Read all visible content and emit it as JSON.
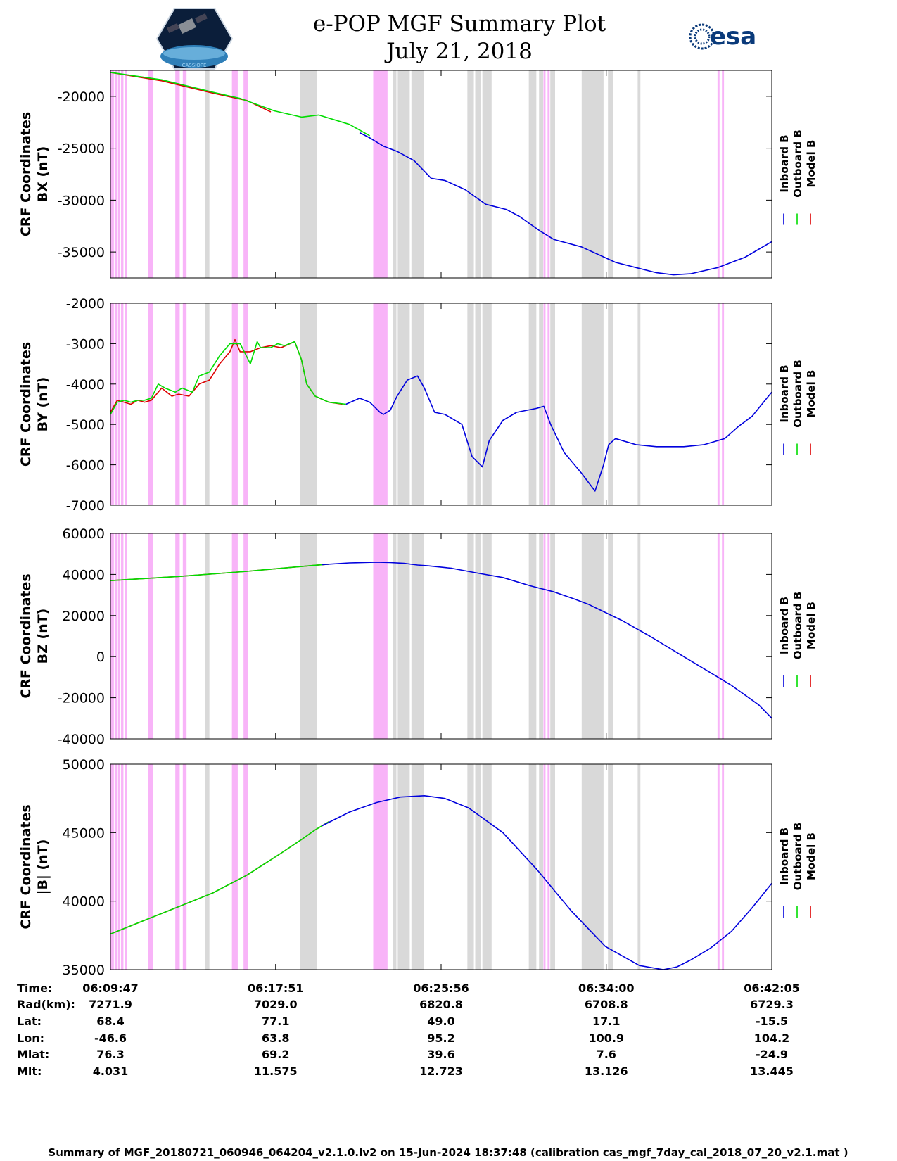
{
  "header": {
    "title_line1": "e-POP MGF Summary Plot",
    "title_line2": "July 21, 2018",
    "left_logo_caption": "CASSIOPE",
    "right_logo_text": "esa"
  },
  "colors": {
    "inboard": "#0000dd",
    "outboard": "#00dd00",
    "model": "#dd0000",
    "pink_band": "#f8b4f8",
    "gray_band": "#d9d9d9"
  },
  "legend": [
    "Inboard B",
    "Outboard B",
    "Model B"
  ],
  "time_axis": {
    "start_sec": 0,
    "end_sec": 1938,
    "tick_seconds": [
      0,
      484,
      969,
      1453,
      1938
    ]
  },
  "bands": {
    "pink": [
      [
        0,
        10
      ],
      [
        12,
        20
      ],
      [
        22,
        29
      ],
      [
        31,
        38
      ],
      [
        42,
        49
      ],
      [
        110,
        125
      ],
      [
        190,
        203
      ],
      [
        212,
        223
      ],
      [
        356,
        373
      ],
      [
        390,
        404
      ],
      [
        770,
        812
      ],
      [
        1269,
        1275
      ],
      [
        1281,
        1287
      ],
      [
        1779,
        1785
      ],
      [
        1792,
        1798
      ]
    ],
    "gray": [
      [
        277,
        290
      ],
      [
        556,
        605
      ],
      [
        828,
        838
      ],
      [
        842,
        877
      ],
      [
        882,
        918
      ],
      [
        1046,
        1065
      ],
      [
        1069,
        1086
      ],
      [
        1090,
        1117
      ],
      [
        1226,
        1248
      ],
      [
        1256,
        1268
      ],
      [
        1289,
        1303
      ],
      [
        1381,
        1445
      ],
      [
        1458,
        1473
      ],
      [
        1545,
        1553
      ]
    ]
  },
  "chart_data": [
    {
      "type": "line",
      "title": "CRF Coordinates BX",
      "ylabel_line1": "CRF Coordinates",
      "ylabel_line2": "BX (nT)",
      "ylim": [
        -37500,
        -17500
      ],
      "yticks": [
        -20000,
        -25000,
        -30000,
        -35000
      ],
      "ytick_labels": [
        "-20000",
        "-25000",
        "-30000",
        "-35000"
      ],
      "series": [
        {
          "name": "Model B",
          "x": [
            0,
            150,
            300,
            400,
            470
          ],
          "y": [
            -17700,
            -18500,
            -19700,
            -20400,
            -21500
          ]
        },
        {
          "name": "Outboard B",
          "x": [
            0,
            150,
            300,
            380,
            480,
            560,
            610,
            700,
            760
          ],
          "y": [
            -17700,
            -18400,
            -19600,
            -20200,
            -21400,
            -22000,
            -21800,
            -22700,
            -23800
          ]
        },
        {
          "name": "Inboard B",
          "x": [
            730,
            760,
            800,
            840,
            890,
            940,
            980,
            1040,
            1100,
            1160,
            1200,
            1260,
            1300,
            1380,
            1440,
            1480,
            1540,
            1600,
            1650,
            1700,
            1780,
            1860,
            1938
          ],
          "y": [
            -23500,
            -24000,
            -24800,
            -25300,
            -26200,
            -27900,
            -28100,
            -29000,
            -30400,
            -30900,
            -31600,
            -33000,
            -33800,
            -34500,
            -35400,
            -36000,
            -36500,
            -37000,
            -37200,
            -37100,
            -36500,
            -35500,
            -34000
          ]
        }
      ]
    },
    {
      "type": "line",
      "title": "CRF Coordinates BY",
      "ylabel_line1": "CRF Coordinates",
      "ylabel_line2": "BY (nT)",
      "ylim": [
        -7000,
        -2000
      ],
      "yticks": [
        -2000,
        -3000,
        -4000,
        -5000,
        -6000,
        -7000
      ],
      "ytick_labels": [
        "-2000",
        "-3000",
        "-4000",
        "-5000",
        "-6000",
        "-7000"
      ],
      "series": [
        {
          "name": "Model B",
          "x": [
            0,
            20,
            40,
            60,
            80,
            100,
            120,
            150,
            180,
            200,
            230,
            260,
            290,
            320,
            350,
            365,
            380,
            410,
            440,
            470,
            500,
            540,
            560,
            575,
            600,
            640,
            680
          ],
          "y": [
            -4700,
            -4400,
            -4450,
            -4500,
            -4400,
            -4450,
            -4400,
            -4100,
            -4300,
            -4250,
            -4300,
            -4000,
            -3900,
            -3500,
            -3200,
            -2900,
            -3200,
            -3200,
            -3100,
            -3050,
            -3100,
            -2950,
            -3400,
            -4000,
            -4300,
            -4450,
            -4500
          ]
        },
        {
          "name": "Outboard B",
          "x": [
            0,
            20,
            40,
            60,
            80,
            100,
            120,
            140,
            160,
            190,
            210,
            240,
            260,
            290,
            320,
            350,
            380,
            410,
            430,
            440,
            470,
            490,
            510,
            540,
            560,
            575,
            600,
            640,
            690
          ],
          "y": [
            -4750,
            -4450,
            -4400,
            -4450,
            -4400,
            -4400,
            -4350,
            -4000,
            -4100,
            -4200,
            -4100,
            -4200,
            -3800,
            -3700,
            -3300,
            -3000,
            -3000,
            -3500,
            -2950,
            -3100,
            -3100,
            -3000,
            -3050,
            -2950,
            -3400,
            -4000,
            -4300,
            -4450,
            -4500
          ]
        },
        {
          "name": "Inboard B",
          "x": [
            690,
            730,
            760,
            790,
            800,
            820,
            840,
            870,
            900,
            920,
            950,
            980,
            1000,
            1030,
            1060,
            1090,
            1110,
            1150,
            1190,
            1220,
            1250,
            1270,
            1290,
            1330,
            1380,
            1420,
            1445,
            1460,
            1480,
            1500,
            1540,
            1600,
            1680,
            1740,
            1800,
            1840,
            1880,
            1938
          ],
          "y": [
            -4500,
            -4350,
            -4450,
            -4700,
            -4750,
            -4650,
            -4300,
            -3900,
            -3800,
            -4100,
            -4700,
            -4750,
            -4850,
            -5000,
            -5800,
            -6050,
            -5400,
            -4900,
            -4700,
            -4650,
            -4600,
            -4550,
            -5000,
            -5700,
            -6200,
            -6650,
            -6000,
            -5500,
            -5350,
            -5400,
            -5500,
            -5550,
            -5550,
            -5500,
            -5350,
            -5050,
            -4800,
            -4200
          ]
        }
      ]
    },
    {
      "type": "line",
      "title": "CRF Coordinates BZ",
      "ylabel_line1": "CRF Coordinates",
      "ylabel_line2": "BZ (nT)",
      "ylim": [
        -40000,
        60000
      ],
      "yticks": [
        60000,
        40000,
        20000,
        0,
        -20000,
        -40000
      ],
      "ytick_labels": [
        "60000",
        "40000",
        "20000",
        "0",
        "-20000",
        "-40000"
      ],
      "series": [
        {
          "name": "Model B",
          "x": [
            0,
            200,
            400,
            600,
            640
          ],
          "y": [
            37000,
            39000,
            41500,
            44500,
            45000
          ]
        },
        {
          "name": "Outboard B",
          "x": [
            0,
            200,
            400,
            600,
            640
          ],
          "y": [
            37000,
            39000,
            41500,
            44500,
            45000
          ]
        },
        {
          "name": "Inboard B",
          "x": [
            620,
            700,
            780,
            820,
            860,
            900,
            930,
            1000,
            1080,
            1150,
            1230,
            1300,
            1360,
            1400,
            1450,
            1500,
            1580,
            1660,
            1740,
            1820,
            1900,
            1938
          ],
          "y": [
            44800,
            45600,
            46000,
            45800,
            45400,
            44600,
            44200,
            43000,
            40500,
            38500,
            34500,
            31500,
            28000,
            25500,
            21500,
            17500,
            10000,
            2000,
            -6000,
            -14000,
            -23500,
            -30000
          ]
        }
      ]
    },
    {
      "type": "line",
      "title": "CRF Coordinates |B|",
      "ylabel_line1": "CRF Coordinates",
      "ylabel_line2": "|B| (nT)",
      "ylim": [
        35000,
        50000
      ],
      "yticks": [
        50000,
        45000,
        40000,
        35000
      ],
      "ytick_labels": [
        "50000",
        "45000",
        "40000",
        "35000"
      ],
      "series": [
        {
          "name": "Model B",
          "x": [
            0,
            100,
            200,
            300,
            400,
            500,
            560,
            600,
            640
          ],
          "y": [
            37600,
            38600,
            39600,
            40600,
            41900,
            43500,
            44500,
            45200,
            45800
          ]
        },
        {
          "name": "Outboard B",
          "x": [
            0,
            100,
            200,
            300,
            400,
            500,
            560,
            600,
            640
          ],
          "y": [
            37600,
            38600,
            39600,
            40600,
            41900,
            43500,
            44500,
            45200,
            45800
          ]
        },
        {
          "name": "Inboard B",
          "x": [
            620,
            700,
            780,
            850,
            920,
            980,
            1050,
            1150,
            1250,
            1350,
            1450,
            1550,
            1620,
            1660,
            1700,
            1760,
            1820,
            1880,
            1938
          ],
          "y": [
            45500,
            46500,
            47200,
            47600,
            47700,
            47500,
            46800,
            45000,
            42300,
            39300,
            36700,
            35300,
            35000,
            35200,
            35700,
            36600,
            37800,
            39500,
            41300
          ]
        }
      ]
    }
  ],
  "info_table": {
    "row_labels": [
      "Time:",
      "Rad(km):",
      "Lat:",
      "Lon:",
      "Mlat:",
      "Mlt:"
    ],
    "columns": [
      [
        "06:09:47",
        "7271.9",
        "68.4",
        "-46.6",
        "76.3",
        "4.031"
      ],
      [
        "06:17:51",
        "7029.0",
        "77.1",
        "63.8",
        "69.2",
        "11.575"
      ],
      [
        "06:25:56",
        "6820.8",
        "49.0",
        "95.2",
        "39.6",
        "12.723"
      ],
      [
        "06:34:00",
        "6708.8",
        "17.1",
        "100.9",
        "7.6",
        "13.126"
      ],
      [
        "06:42:05",
        "6729.3",
        "-15.5",
        "104.2",
        "-24.9",
        "13.445"
      ]
    ]
  },
  "footer": {
    "text": "Summary of MGF_20180721_060946_064204_v2.1.0.lv2 on 15-Jun-2024 18:37:48 (calibration cas_mgf_7day_cal_2018_07_20_v2.1.mat )"
  }
}
